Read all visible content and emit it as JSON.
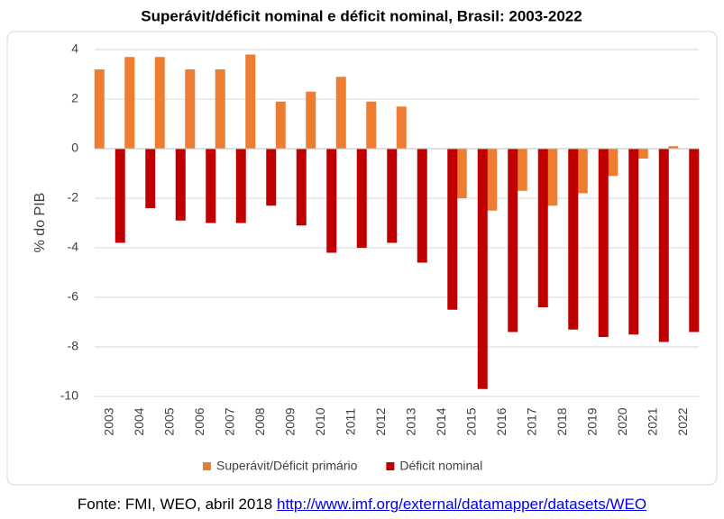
{
  "chart_data": {
    "type": "bar",
    "title": "Superávit/déficit nominal e déficit nominal, Brasil: 2003-2022",
    "y_label": "% do PIB",
    "categories": [
      "2003",
      "2004",
      "2005",
      "2006",
      "2007",
      "2008",
      "2009",
      "2010",
      "2011",
      "2012",
      "2013",
      "2014",
      "2015",
      "2016",
      "2017",
      "2018",
      "2019",
      "2020",
      "2021",
      "2022"
    ],
    "series": [
      {
        "name": "Superávit/Déficit primário",
        "color": "#ed7d31",
        "values": [
          3.2,
          3.7,
          3.7,
          3.2,
          3.2,
          3.8,
          1.9,
          2.3,
          2.9,
          1.9,
          1.7,
          0,
          -2.0,
          -2.5,
          -1.7,
          -2.3,
          -1.8,
          -1.1,
          -0.4,
          0.1
        ]
      },
      {
        "name": "Déficit nominal",
        "color": "#c00000",
        "values": [
          -3.8,
          -2.4,
          -2.9,
          -3.0,
          -3.0,
          -2.3,
          -3.1,
          -4.2,
          -4.0,
          -3.8,
          -4.6,
          -6.5,
          -9.7,
          -7.4,
          -6.4,
          -7.3,
          -7.6,
          -7.5,
          -7.8,
          -7.4
        ]
      }
    ],
    "ylim": [
      -10,
      4
    ],
    "yticks": [
      -10,
      -8,
      -6,
      -4,
      -2,
      0,
      2,
      4
    ],
    "grid": true,
    "legend": "bottom"
  },
  "footer": {
    "source": "Fonte: FMI, WEO, abril 2018",
    "link": "http://www.imf.org/external/datamapper/datasets/WEO"
  }
}
